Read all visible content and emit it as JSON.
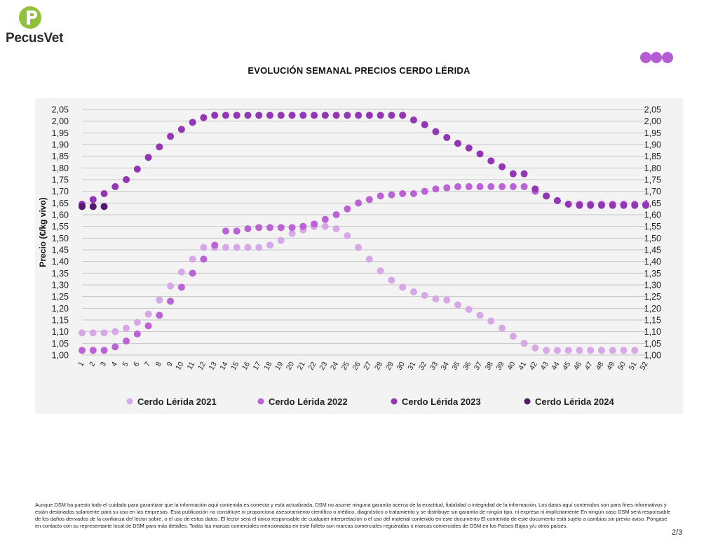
{
  "brand": {
    "name": "PecusVet",
    "colors": {
      "green": "#8fc13a",
      "purple": "#b55bd6"
    }
  },
  "page": {
    "title": "EVOLUCIÓN SEMANAL PRECIOS CERDO LÉRIDA",
    "number": "2/3"
  },
  "footer": {
    "disclaimer": "Aunque DSM ha puesto todo el cuidado para garantizar que la información aquí contenida es correcta y está actualizada, DSM no asume ninguna garantía acerca de la exactitud, fiabilidad o integridad de la información. Los datos aquí contenidos son para fines informativos y están destinados solamente para su uso en las empresas. Esta publicación no constituye ni proporciona asesoramiento científico o médico, diagnóstico o tratamiento y se distribuye sin garantía de ningún tipo, ni expresa ni implícitamente En ningún caso DSM será responsable de los daños derivados de la confianza del lector sobre, o el uso de estos datos. El lector será el único responsable de cualquier interpretación o el uso del material contenido en este documento El contenido de este documento está sujeto a cambios sin previo aviso. Póngase en contacto con su representante local de DSM para más detalles. Todas las marcas comerciales mencionadas en este folleto son marcas comerciales registradas o marcas comerciales de DSM en los Países Bajos y/u otros países."
  },
  "chart_data": {
    "type": "scatter",
    "title": "",
    "xlabel": "",
    "ylabel": "Precio (€/kg vivo)",
    "x": [
      1,
      2,
      3,
      4,
      5,
      6,
      7,
      8,
      9,
      10,
      11,
      12,
      13,
      14,
      15,
      16,
      17,
      18,
      19,
      20,
      21,
      22,
      23,
      24,
      25,
      26,
      27,
      28,
      29,
      30,
      31,
      32,
      33,
      34,
      35,
      36,
      37,
      38,
      39,
      40,
      41,
      42,
      43,
      44,
      45,
      46,
      47,
      48,
      49,
      50,
      51,
      52
    ],
    "ylim": [
      1.0,
      2.05
    ],
    "ytick_labels": [
      "1,00",
      "1,05",
      "1,10",
      "1,15",
      "1,20",
      "1,25",
      "1,30",
      "1,35",
      "1,40",
      "1,45",
      "1,50",
      "1,55",
      "1,60",
      "1,65",
      "1,70",
      "1,75",
      "1,80",
      "1,85",
      "1,90",
      "1,95",
      "2,00",
      "2,05"
    ],
    "grid": "horizontal",
    "legend_position": "bottom",
    "series": [
      {
        "name": "Cerdo Lérida 2021",
        "color": "#d7a8e8",
        "values": [
          1.095,
          1.095,
          1.095,
          1.1,
          1.115,
          1.14,
          1.175,
          1.235,
          1.295,
          1.355,
          1.41,
          1.46,
          1.46,
          1.46,
          1.46,
          1.46,
          1.46,
          1.47,
          1.49,
          1.52,
          1.535,
          1.55,
          1.55,
          1.54,
          1.51,
          1.46,
          1.41,
          1.36,
          1.32,
          1.29,
          1.27,
          1.255,
          1.24,
          1.235,
          1.215,
          1.195,
          1.17,
          1.145,
          1.115,
          1.08,
          1.05,
          1.03,
          1.02,
          1.02,
          1.02,
          1.02,
          1.02,
          1.02,
          1.02,
          1.02,
          1.02,
          null
        ]
      },
      {
        "name": "Cerdo Lérida 2022",
        "color": "#bb62d6",
        "values": [
          1.02,
          1.02,
          1.02,
          1.035,
          1.06,
          1.09,
          1.125,
          1.17,
          1.23,
          1.29,
          1.35,
          1.41,
          1.47,
          1.53,
          1.53,
          1.54,
          1.545,
          1.545,
          1.545,
          1.545,
          1.55,
          1.56,
          1.58,
          1.6,
          1.625,
          1.65,
          1.665,
          1.68,
          1.685,
          1.69,
          1.69,
          1.7,
          1.71,
          1.715,
          1.72,
          1.72,
          1.72,
          1.72,
          1.72,
          1.72,
          1.72,
          1.7,
          1.68,
          1.66,
          1.645,
          1.645,
          1.645,
          1.645,
          1.645,
          1.645,
          1.645,
          1.645
        ]
      },
      {
        "name": "Cerdo Lérida 2023",
        "color": "#9236b4",
        "values": [
          1.645,
          1.665,
          1.69,
          1.72,
          1.75,
          1.795,
          1.845,
          1.89,
          1.935,
          1.965,
          1.995,
          2.015,
          2.025,
          2.025,
          2.025,
          2.025,
          2.025,
          2.025,
          2.025,
          2.025,
          2.025,
          2.025,
          2.025,
          2.025,
          2.025,
          2.025,
          2.025,
          2.025,
          2.025,
          2.025,
          2.005,
          1.985,
          1.955,
          1.93,
          1.905,
          1.885,
          1.86,
          1.83,
          1.805,
          1.775,
          1.775,
          1.71,
          1.68,
          1.66,
          1.645,
          1.64,
          1.64,
          1.64,
          1.64,
          1.64,
          1.64,
          1.64
        ]
      },
      {
        "name": "Cerdo Lérida 2024",
        "color": "#55186f",
        "values": [
          1.635,
          1.635,
          1.635,
          null,
          null,
          null,
          null,
          null,
          null,
          null,
          null,
          null,
          null,
          null,
          null,
          null,
          null,
          null,
          null,
          null,
          null,
          null,
          null,
          null,
          null,
          null,
          null,
          null,
          null,
          null,
          null,
          null,
          null,
          null,
          null,
          null,
          null,
          null,
          null,
          null,
          null,
          null,
          null,
          null,
          null,
          null,
          null,
          null,
          null,
          null,
          null,
          null
        ]
      }
    ]
  }
}
